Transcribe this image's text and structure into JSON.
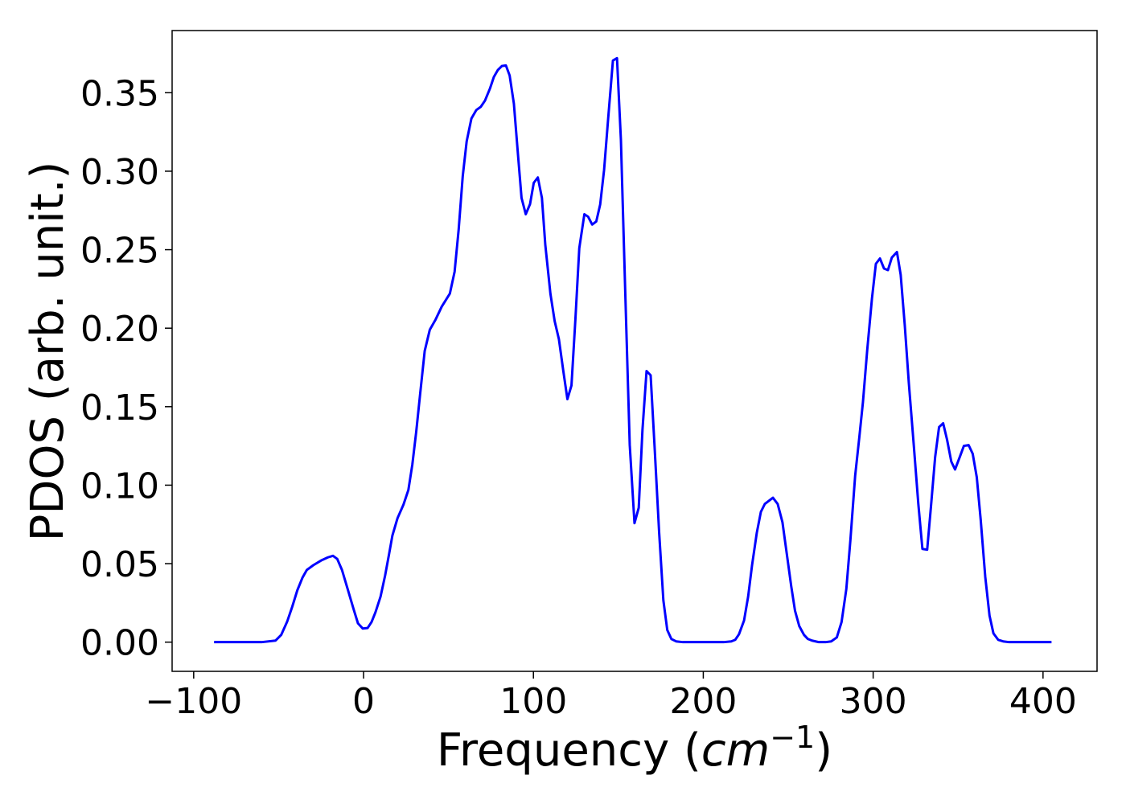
{
  "chart_data": {
    "type": "line",
    "xlabel": [
      "Frequency (",
      "cm",
      "−1",
      ")"
    ],
    "ylabel": "PDOS (arb. unit.)",
    "color": "#0000ff",
    "x": [
      -88,
      -60,
      -51.8,
      -48.5,
      -45,
      -42,
      -39,
      -36,
      -33.4,
      -29.6,
      -25,
      -21,
      -18,
      -15.5,
      -12.7,
      -9.4,
      -6,
      -3.3,
      -0.5,
      2.4,
      4.7,
      7,
      10,
      12.7,
      15,
      17,
      20,
      23.5,
      26.4,
      28.7,
      31,
      33.4,
      36,
      39,
      42.4,
      46,
      50.8,
      53.6,
      56,
      58.4,
      60.7,
      63.5,
      66.4,
      69,
      71.5,
      74.4,
      76.7,
      79,
      81.4,
      83.8,
      86,
      88.5,
      90.8,
      93,
      95.5,
      98,
      100.2,
      102.6,
      105,
      107,
      110,
      112.5,
      115,
      117.6,
      120,
      122.4,
      124.7,
      127,
      130,
      132.2,
      134.6,
      137,
      139.3,
      141.6,
      144,
      146.8,
      149.2,
      151.5,
      154,
      156.7,
      159.5,
      162,
      164.2,
      166.6,
      169,
      171.3,
      174,
      176.5,
      178.8,
      181.2,
      184,
      188,
      212,
      216.5,
      218.8,
      221,
      224,
      226.4,
      228.7,
      231.5,
      233.9,
      236.2,
      238.6,
      241,
      243.8,
      246.6,
      249.4,
      251.8,
      254,
      256.5,
      259.3,
      261.6,
      264,
      268,
      272,
      275.3,
      278.6,
      281.4,
      284.2,
      286.6,
      289.4,
      291.8,
      294,
      296.5,
      299.3,
      301.6,
      304,
      306.4,
      308.7,
      311,
      314,
      316.2,
      318.6,
      321,
      323.8,
      326.6,
      329,
      331.8,
      334,
      336.5,
      338.8,
      341.2,
      343.5,
      346,
      348.2,
      351,
      353.4,
      356.2,
      358.6,
      361,
      363.3,
      366,
      368.5,
      370.8,
      373.6,
      376.5,
      380,
      405
    ],
    "values": [
      0,
      0,
      0.001,
      0.0046,
      0.013,
      0.0225,
      0.033,
      0.041,
      0.046,
      0.049,
      0.052,
      0.054,
      0.055,
      0.053,
      0.046,
      0.034,
      0.0215,
      0.012,
      0.0087,
      0.009,
      0.0128,
      0.019,
      0.029,
      0.0425,
      0.056,
      0.068,
      0.079,
      0.0876,
      0.097,
      0.113,
      0.134,
      0.159,
      0.1855,
      0.199,
      0.2055,
      0.2137,
      0.222,
      0.236,
      0.263,
      0.297,
      0.319,
      0.3336,
      0.339,
      0.341,
      0.345,
      0.3526,
      0.36,
      0.3644,
      0.367,
      0.3674,
      0.361,
      0.343,
      0.312,
      0.283,
      0.2726,
      0.279,
      0.2926,
      0.296,
      0.283,
      0.253,
      0.222,
      0.2045,
      0.193,
      0.1727,
      0.1548,
      0.1635,
      0.2055,
      0.251,
      0.2726,
      0.271,
      0.266,
      0.268,
      0.2788,
      0.3008,
      0.3336,
      0.3705,
      0.372,
      0.32,
      0.225,
      0.1256,
      0.0758,
      0.0856,
      0.1353,
      0.1727,
      0.17,
      0.125,
      0.07,
      0.0266,
      0.0077,
      0.002,
      0.0005,
      0,
      0,
      0.0005,
      0.0015,
      0.005,
      0.0138,
      0.029,
      0.049,
      0.0697,
      0.083,
      0.088,
      0.09,
      0.092,
      0.088,
      0.0764,
      0.0543,
      0.0354,
      0.02,
      0.0102,
      0.0046,
      0.002,
      0.001,
      0,
      0,
      0.0005,
      0.003,
      0.0128,
      0.0338,
      0.065,
      0.106,
      0.13,
      0.153,
      0.186,
      0.219,
      0.241,
      0.2444,
      0.238,
      0.237,
      0.245,
      0.2485,
      0.234,
      0.202,
      0.165,
      0.127,
      0.088,
      0.0594,
      0.0589,
      0.086,
      0.118,
      0.137,
      0.1394,
      0.129,
      0.115,
      0.11,
      0.118,
      0.125,
      0.1255,
      0.12,
      0.105,
      0.078,
      0.0415,
      0.0169,
      0.0056,
      0.0015,
      0.0005,
      0,
      0
    ],
    "xlim": [
      -112.7,
      431.8
    ],
    "ylim": [
      -0.0186,
      0.3896
    ],
    "xticks": [
      {
        "value": -100,
        "label": "−100"
      },
      0,
      100,
      200,
      300,
      400
    ],
    "yticks": [
      {
        "value": 0,
        "label": "0.00"
      },
      {
        "value": 0.05,
        "label": "0.05"
      },
      {
        "value": 0.1,
        "label": "0.10"
      },
      {
        "value": 0.15,
        "label": "0.15"
      },
      {
        "value": 0.2,
        "label": "0.20"
      },
      {
        "value": 0.25,
        "label": "0.25"
      },
      {
        "value": 0.3,
        "label": "0.30"
      },
      {
        "value": 0.35,
        "label": "0.35"
      }
    ],
    "grid": false
  }
}
